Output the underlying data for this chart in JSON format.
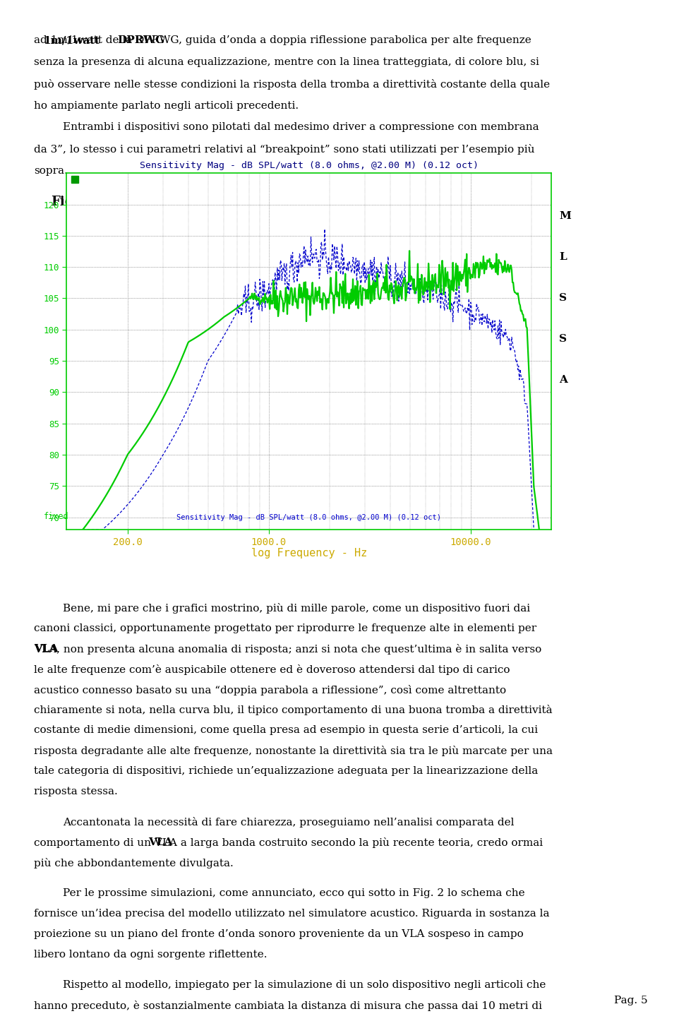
{
  "para2": "Entrambi i dispositivi sono pilotati dal medesimo driver a compressione con membrana da 3”, lo stesso i cui parametri relativi al “breakpoint” sono stati utilizzati per l’esempio più sopra.",
  "fig_label": "Fig.1",
  "chart_title": "Sensitivity Mag - dB SPL/watt (8.0 ohms, @2.00 M) (0.12 oct)",
  "chart_xlabel": "log Frequency - Hz",
  "chart_bottom_label": "Sensitivity Mag - dB SPL/watt (8.0 ohms, @2.00 M) (0.12 oct)",
  "y_ticks": [
    70.0,
    75.0,
    80.0,
    85.0,
    90.0,
    95.0,
    100.0,
    105.0,
    110.0,
    115.0,
    120.0
  ],
  "ylim": [
    68,
    125
  ],
  "xlim_log": [
    100,
    25000
  ],
  "fixed_label": "fixed",
  "green_color": "#00cc00",
  "blue_color": "#0000cc",
  "page_bg": "#ffffff",
  "page_num": "Pag. 5",
  "top_lines": [
    "ad 1m/1watt della DPRWG, guida d’onda a doppia riflessione parabolica per alte frequenze",
    "senza la presenza di alcuna equalizzazione, mentre con la linea tratteggiata, di colore blu, si",
    "può osservare nelle stesse condizioni la risposta della tromba a direttività costante della quale",
    "ho ampiamente parlato negli articoli precedenti."
  ],
  "p2_lines": [
    "Entrambi i dispositivi sono pilotati dal medesimo driver a compressione con membrana",
    "da 3”, lo stesso i cui parametri relativi al “breakpoint” sono stati utilizzati per l’esempio più",
    "sopra."
  ],
  "bt_lines": [
    "Bene, mi pare che i grafici mostrino, più di mille parole, come un dispositivo fuori dai",
    "canoni classici, opportunamente progettato per riprodurre le frequenze alte in elementi per",
    "VLA, non presenta alcuna anomalia di risposta; anzi si nota che quest’ultima è in salita verso",
    "le alte frequenze com’è auspicabile ottenere ed è doveroso attendersi dal tipo di carico",
    "acustico connesso basato su una “doppia parabola a riflessione”, così come altrettanto",
    "chiaramente si nota, nella curva blu, il tipico comportamento di una buona tromba a direttività",
    "costante di medie dimensioni, come quella presa ad esempio in questa serie d’articoli, la cui",
    "risposta degradante alle alte frequenze, nonostante la direttività sia tra le più marcate per una",
    "tale categoria di dispositivi, richiede un’equalizzazione adeguata per la linearizzazione della",
    "risposta stessa."
  ],
  "bp2_lines": [
    "Accantonata la necessità di fare chiarezza, proseguiamo nell’analisi comparata del",
    "comportamento di un VLA a larga banda costruito secondo la più recente teoria, credo ormai",
    "più che abbondantemente divulgata."
  ],
  "bp3_lines": [
    "Per le prossime simulazioni, come annunciato, ecco qui sotto in Fig. 2 lo schema che",
    "fornisce un’idea precisa del modello utilizzato nel simulatore acustico. Riguarda in sostanza la",
    "proiezione su un piano del fronte d’onda sonoro proveniente da un VLA sospeso in campo",
    "libero lontano da ogni sorgente riflettente."
  ],
  "bp4_lines": [
    "Rispetto al modello, impiegato per la simulazione di un solo dispositivo negli articoli che",
    "hanno preceduto, è sostanzialmente cambiata la distanza di misura che passa dai 10 metri di"
  ]
}
